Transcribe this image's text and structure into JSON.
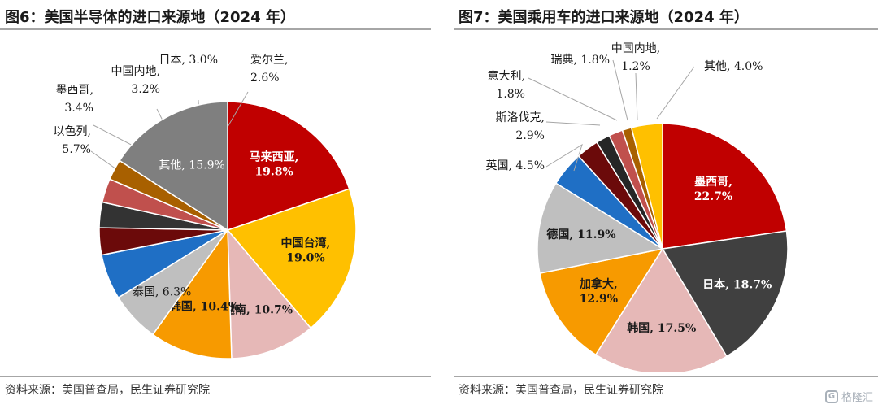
{
  "charts": [
    {
      "title": "图6：美国半导体的进口来源地（2024 年）",
      "source": "资料来源：美国普查局，民生证券研究院",
      "chart_data": {
        "type": "pie",
        "unit": "%",
        "slices": [
          {
            "label": "马来西亚",
            "value": 19.8,
            "color": "#c00000",
            "text_color": "#ffffff",
            "bold": true
          },
          {
            "label": "中国台湾",
            "value": 19.0,
            "color": "#ffc000",
            "text_color": "#1a1a1a",
            "bold": true
          },
          {
            "label": "越南",
            "value": 10.7,
            "color": "#e6b8b7",
            "text_color": "#1a1a1a",
            "bold": true
          },
          {
            "label": "韩国",
            "value": 10.4,
            "color": "#f79a00",
            "text_color": "#1a1a1a",
            "bold": true
          },
          {
            "label": "泰国",
            "value": 6.3,
            "color": "#bfbfbf",
            "text_color": "#1a1a1a",
            "bold": false
          },
          {
            "label": "以色列",
            "value": 5.7,
            "color": "#1f6fc5",
            "text_color": "#1a1a1a",
            "bold": false
          },
          {
            "label": "墨西哥",
            "value": 3.4,
            "color": "#6b0a0a",
            "text_color": "#1a1a1a",
            "bold": false
          },
          {
            "label": "中国内地",
            "value": 3.2,
            "color": "#333333",
            "text_color": "#1a1a1a",
            "bold": false
          },
          {
            "label": "日本",
            "value": 3.0,
            "color": "#c0504d",
            "text_color": "#1a1a1a",
            "bold": false
          },
          {
            "label": "爱尔兰",
            "value": 2.6,
            "color": "#a86000",
            "text_color": "#1a1a1a",
            "bold": false
          },
          {
            "label": "其他",
            "value": 15.9,
            "color": "#7f7f7f",
            "text_color": "#ffffff",
            "bold": false
          }
        ]
      }
    },
    {
      "title": "图7：美国乘用车的进口来源地（2024 年）",
      "source": "资料来源：美国普查局，民生证券研究院",
      "chart_data": {
        "type": "pie",
        "unit": "%",
        "slices": [
          {
            "label": "墨西哥",
            "value": 22.7,
            "color": "#c00000",
            "text_color": "#ffffff",
            "bold": true
          },
          {
            "label": "日本",
            "value": 18.7,
            "color": "#404040",
            "text_color": "#ffffff",
            "bold": true
          },
          {
            "label": "韩国",
            "value": 17.5,
            "color": "#e6b8b7",
            "text_color": "#1a1a1a",
            "bold": true
          },
          {
            "label": "加拿大",
            "value": 12.9,
            "color": "#f79a00",
            "text_color": "#1a1a1a",
            "bold": true
          },
          {
            "label": "德国",
            "value": 11.9,
            "color": "#bfbfbf",
            "text_color": "#1a1a1a",
            "bold": true
          },
          {
            "label": "英国",
            "value": 4.5,
            "color": "#1f6fc5",
            "text_color": "#1a1a1a",
            "bold": false
          },
          {
            "label": "斯洛伐克",
            "value": 2.9,
            "color": "#6b0a0a",
            "text_color": "#1a1a1a",
            "bold": false
          },
          {
            "label": "意大利",
            "value": 1.8,
            "color": "#262626",
            "text_color": "#1a1a1a",
            "bold": false
          },
          {
            "label": "瑞典",
            "value": 1.8,
            "color": "#c0504d",
            "text_color": "#1a1a1a",
            "bold": false
          },
          {
            "label": "中国内地",
            "value": 1.2,
            "color": "#a86000",
            "text_color": "#1a1a1a",
            "bold": false
          },
          {
            "label": "其他",
            "value": 4.0,
            "color": "#ffc000",
            "text_color": "#1a1a1a",
            "bold": false
          }
        ]
      }
    }
  ],
  "watermark": "格隆汇"
}
